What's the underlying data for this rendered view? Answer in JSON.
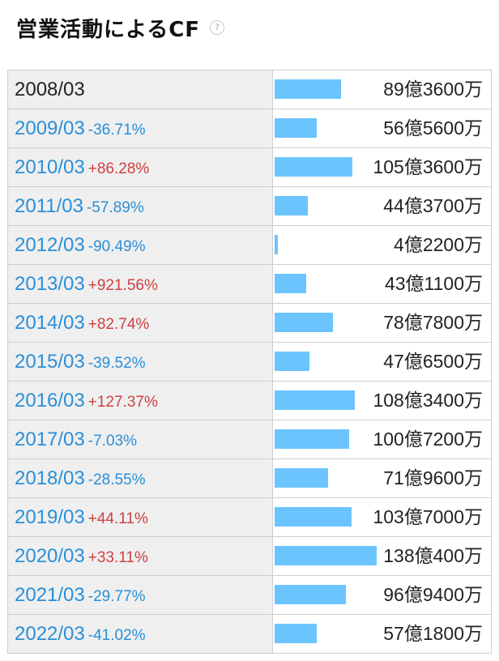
{
  "title": "営業活動によるCF",
  "help_icon": "?",
  "bar_color": "#6cc4ff",
  "bar_max_value_oku": 138.04,
  "rows": [
    {
      "year": "2008/03",
      "change": "",
      "direction": "",
      "amount": "89億3600万",
      "value_oku": 89.36
    },
    {
      "year": "2009/03",
      "change": "-36.71%",
      "direction": "down",
      "amount": "56億5600万",
      "value_oku": 56.56
    },
    {
      "year": "2010/03",
      "change": "+86.28%",
      "direction": "up",
      "amount": "105億3600万",
      "value_oku": 105.36
    },
    {
      "year": "2011/03",
      "change": "-57.89%",
      "direction": "down",
      "amount": "44億3700万",
      "value_oku": 44.37
    },
    {
      "year": "2012/03",
      "change": "-90.49%",
      "direction": "down",
      "amount": "4億2200万",
      "value_oku": 4.22
    },
    {
      "year": "2013/03",
      "change": "+921.56%",
      "direction": "up",
      "amount": "43億1100万",
      "value_oku": 43.11
    },
    {
      "year": "2014/03",
      "change": "+82.74%",
      "direction": "up",
      "amount": "78億7800万",
      "value_oku": 78.78
    },
    {
      "year": "2015/03",
      "change": "-39.52%",
      "direction": "down",
      "amount": "47億6500万",
      "value_oku": 47.65
    },
    {
      "year": "2016/03",
      "change": "+127.37%",
      "direction": "up",
      "amount": "108億3400万",
      "value_oku": 108.34
    },
    {
      "year": "2017/03",
      "change": "-7.03%",
      "direction": "down",
      "amount": "100億7200万",
      "value_oku": 100.72
    },
    {
      "year": "2018/03",
      "change": "-28.55%",
      "direction": "down",
      "amount": "71億9600万",
      "value_oku": 71.96
    },
    {
      "year": "2019/03",
      "change": "+44.11%",
      "direction": "up",
      "amount": "103億7000万",
      "value_oku": 103.7
    },
    {
      "year": "2020/03",
      "change": "+33.11%",
      "direction": "up",
      "amount": "138億400万",
      "value_oku": 138.04
    },
    {
      "year": "2021/03",
      "change": "-29.77%",
      "direction": "down",
      "amount": "96億9400万",
      "value_oku": 96.94
    },
    {
      "year": "2022/03",
      "change": "-41.02%",
      "direction": "down",
      "amount": "57億1800万",
      "value_oku": 57.18
    }
  ]
}
